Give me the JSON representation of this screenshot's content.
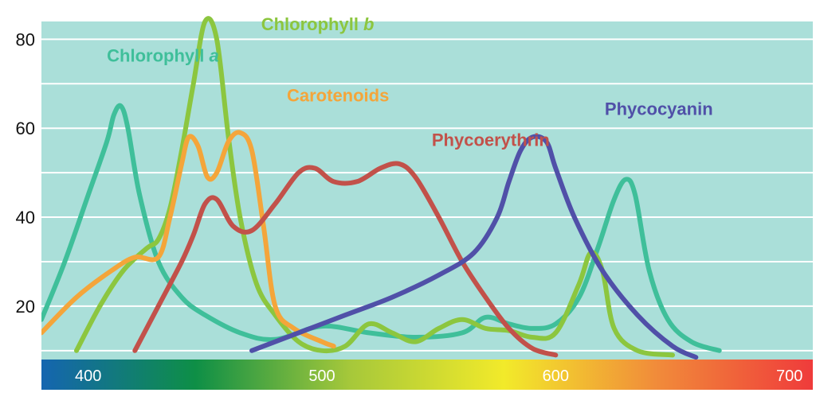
{
  "chart_data": {
    "type": "line",
    "title": "",
    "xlabel": "",
    "ylabel": "",
    "xlim": [
      380,
      710
    ],
    "ylim": [
      8,
      84
    ],
    "yticks": [
      20,
      40,
      60,
      80
    ],
    "xticks": [
      400,
      500,
      600,
      700
    ],
    "grid": true,
    "background": "#aadfd9",
    "spectrum_colors": [
      "#1565b0",
      "#0e8f46",
      "#a6c83a",
      "#f2ea2a",
      "#f18a3a",
      "#ef3b3b"
    ],
    "series": [
      {
        "name": "Chlorophyll a",
        "name_main": "Chlorophyll ",
        "name_italic": "a",
        "color": "#3fbf9a",
        "points": [
          [
            380,
            17
          ],
          [
            390,
            30
          ],
          [
            400,
            45
          ],
          [
            408,
            57
          ],
          [
            411,
            63
          ],
          [
            414,
            65
          ],
          [
            417,
            60
          ],
          [
            422,
            45
          ],
          [
            430,
            30
          ],
          [
            440,
            22
          ],
          [
            450,
            18
          ],
          [
            465,
            14
          ],
          [
            480,
            12.5
          ],
          [
            500,
            15.5
          ],
          [
            520,
            14
          ],
          [
            540,
            13
          ],
          [
            560,
            14
          ],
          [
            570,
            17.5
          ],
          [
            580,
            16
          ],
          [
            590,
            15
          ],
          [
            600,
            16
          ],
          [
            610,
            22
          ],
          [
            618,
            33
          ],
          [
            625,
            44
          ],
          [
            630,
            48.5
          ],
          [
            634,
            45
          ],
          [
            640,
            28
          ],
          [
            648,
            17
          ],
          [
            658,
            12
          ],
          [
            670,
            10
          ]
        ]
      },
      {
        "name": "Chlorophyll b",
        "name_main": "Chlorophyll ",
        "name_italic": "b",
        "color": "#8cc63f",
        "points": [
          [
            395,
            10
          ],
          [
            405,
            20
          ],
          [
            415,
            28
          ],
          [
            425,
            33
          ],
          [
            430,
            35
          ],
          [
            435,
            42
          ],
          [
            440,
            55
          ],
          [
            445,
            70
          ],
          [
            450,
            84
          ],
          [
            455,
            80
          ],
          [
            460,
            58
          ],
          [
            465,
            40
          ],
          [
            472,
            25
          ],
          [
            480,
            18
          ],
          [
            490,
            12
          ],
          [
            500,
            10
          ],
          [
            510,
            11
          ],
          [
            520,
            16
          ],
          [
            530,
            14
          ],
          [
            540,
            12
          ],
          [
            550,
            15
          ],
          [
            560,
            17
          ],
          [
            570,
            15
          ],
          [
            580,
            14.5
          ],
          [
            590,
            13
          ],
          [
            600,
            14
          ],
          [
            610,
            25
          ],
          [
            615,
            32
          ],
          [
            620,
            28
          ],
          [
            625,
            15
          ],
          [
            635,
            10
          ],
          [
            650,
            9
          ]
        ]
      },
      {
        "name": "Carotenoids",
        "color": "#f4a53a",
        "points": [
          [
            380,
            14
          ],
          [
            395,
            22
          ],
          [
            410,
            28
          ],
          [
            420,
            31
          ],
          [
            430,
            31
          ],
          [
            435,
            40
          ],
          [
            440,
            52
          ],
          [
            443,
            58
          ],
          [
            447,
            56
          ],
          [
            451,
            49
          ],
          [
            455,
            50
          ],
          [
            460,
            57
          ],
          [
            465,
            59
          ],
          [
            470,
            55
          ],
          [
            475,
            38
          ],
          [
            480,
            20
          ],
          [
            488,
            15
          ],
          [
            500,
            12
          ],
          [
            505,
            11
          ]
        ]
      },
      {
        "name": "Phycoerythrin",
        "color": "#c2514a",
        "points": [
          [
            420,
            10
          ],
          [
            430,
            20
          ],
          [
            440,
            30
          ],
          [
            445,
            36
          ],
          [
            450,
            43
          ],
          [
            455,
            44
          ],
          [
            462,
            38
          ],
          [
            470,
            37
          ],
          [
            480,
            43
          ],
          [
            490,
            50
          ],
          [
            497,
            51
          ],
          [
            505,
            48
          ],
          [
            515,
            48
          ],
          [
            525,
            51
          ],
          [
            533,
            52
          ],
          [
            540,
            49
          ],
          [
            550,
            40
          ],
          [
            560,
            30
          ],
          [
            570,
            22
          ],
          [
            580,
            15
          ],
          [
            590,
            10.5
          ],
          [
            600,
            9
          ]
        ]
      },
      {
        "name": "Phycocyanin",
        "color": "#5050a8",
        "points": [
          [
            470,
            10
          ],
          [
            490,
            14
          ],
          [
            510,
            18
          ],
          [
            530,
            22
          ],
          [
            550,
            27
          ],
          [
            565,
            32
          ],
          [
            575,
            40
          ],
          [
            580,
            48
          ],
          [
            585,
            55
          ],
          [
            590,
            58
          ],
          [
            596,
            57
          ],
          [
            600,
            51
          ],
          [
            608,
            40
          ],
          [
            620,
            28
          ],
          [
            635,
            18
          ],
          [
            650,
            11
          ],
          [
            660,
            8.5
          ]
        ]
      }
    ],
    "labels": [
      {
        "series": 0,
        "x": 408,
        "y": 75
      },
      {
        "series": 1,
        "x": 474,
        "y": 82
      },
      {
        "series": 2,
        "x": 485,
        "y": 66
      },
      {
        "series": 3,
        "x": 547,
        "y": 56
      },
      {
        "series": 4,
        "x": 621,
        "y": 63
      }
    ]
  }
}
